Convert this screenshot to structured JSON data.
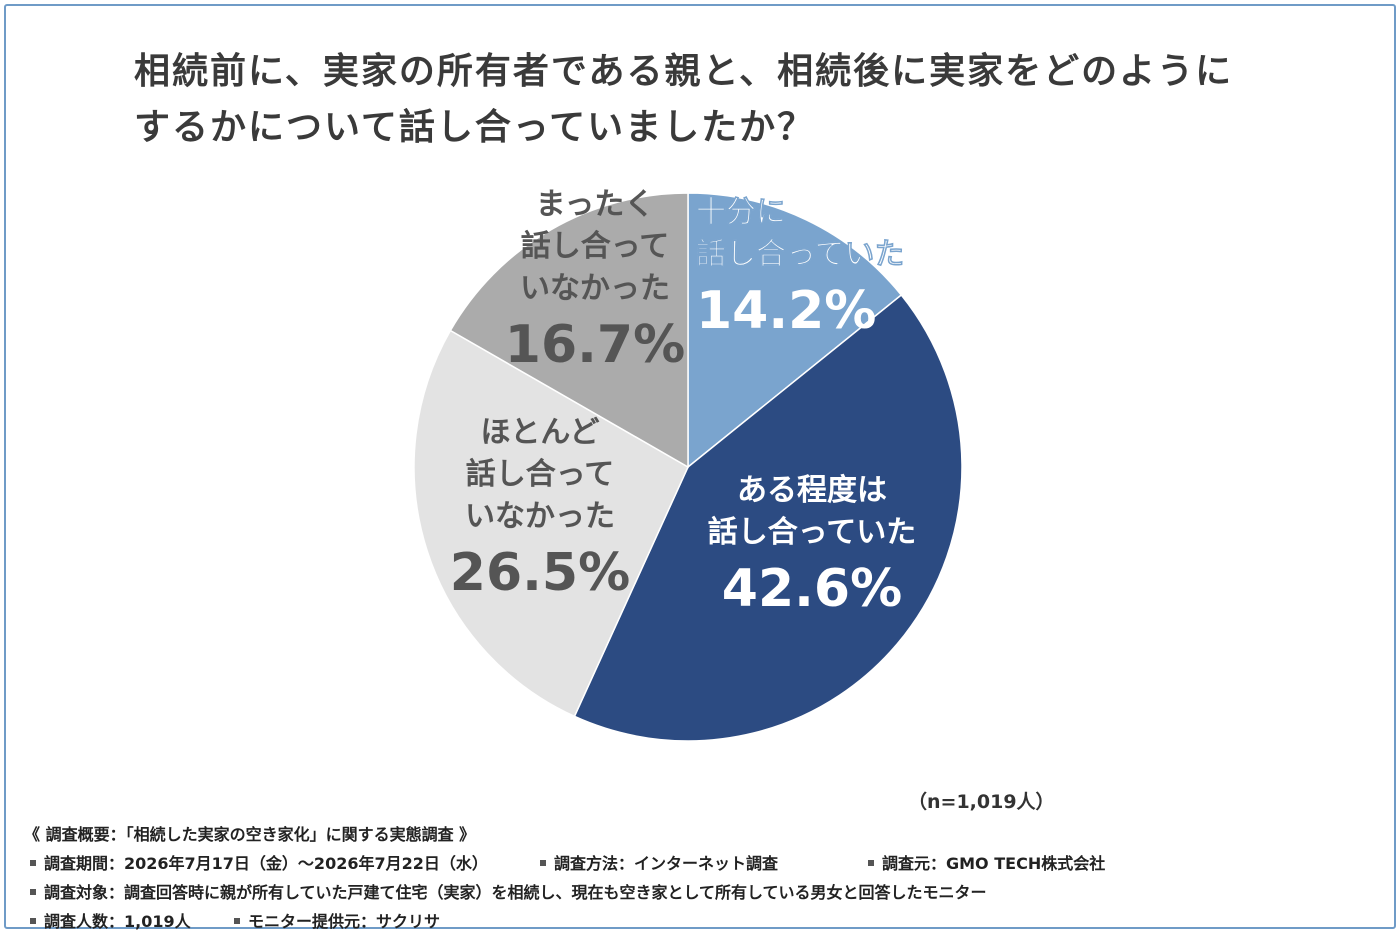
{
  "title": {
    "line1": "相続前に、実家の所有者である親と、相続後に実家をどのように",
    "line2": "するかについて話し合っていましたか？"
  },
  "chart_data": {
    "type": "pie",
    "categories": [
      "十分に話し合っていた",
      "ある程度は話し合っていた",
      "ほとんど話し合っていなかった",
      "まったく話し合っていなかった"
    ],
    "values": [
      14.2,
      42.6,
      26.5,
      16.7
    ],
    "colors": [
      "#7aa4ce",
      "#2c4b82",
      "#e3e3e3",
      "#ababab"
    ],
    "slices": [
      {
        "label_lines": [
          "十分に",
          "話し合っていた"
        ],
        "value_label": "14.2%"
      },
      {
        "label_lines": [
          "ある程度は",
          "話し合っていた"
        ],
        "value_label": "42.6%"
      },
      {
        "label_lines": [
          "ほとんど",
          "話し合って",
          "いなかった"
        ],
        "value_label": "26.5%"
      },
      {
        "label_lines": [
          "まったく",
          "話し合って",
          "いなかった"
        ],
        "value_label": "16.7%"
      }
    ]
  },
  "sample_note": "（n=1,019人）",
  "footer": {
    "overview": "《 調査概要：「相続した実家の空き家化」に関する実態調査 》",
    "period": "調査期間：2026年7月17日（金）～2026年7月22日（水）",
    "method": "調査方法：インターネット調査",
    "source": "調査元：GMO TECH株式会社",
    "target": "調査対象：調査回答時に親が所有していた戸建て住宅（実家）を相続し、現在も空き家として所有している男女と回答したモニター",
    "count": "調査人数：1,019人",
    "provider": "モニター提供元：サクリサ"
  }
}
